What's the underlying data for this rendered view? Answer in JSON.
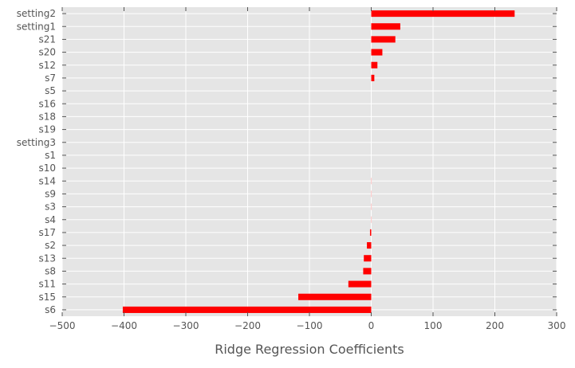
{
  "chart_data": {
    "type": "bar",
    "orientation": "horizontal",
    "title": "",
    "xlabel": "Ridge Regression Coefficients",
    "ylabel": "",
    "xlim": [
      -500,
      300
    ],
    "xticks": [
      -500,
      -400,
      -300,
      -200,
      -100,
      0,
      100,
      200,
      300
    ],
    "xtick_labels": [
      "−500",
      "−400",
      "−300",
      "−200",
      "−100",
      "0",
      "100",
      "200",
      "300"
    ],
    "grid": true,
    "legend": "none",
    "categories": [
      "s6",
      "s15",
      "s11",
      "s8",
      "s13",
      "s2",
      "s17",
      "s4",
      "s3",
      "s9",
      "s14",
      "s10",
      "s1",
      "setting3",
      "s19",
      "s18",
      "s16",
      "s5",
      "s7",
      "s12",
      "s20",
      "s21",
      "setting1",
      "setting2"
    ],
    "values": [
      -402,
      -118,
      -37,
      -13,
      -12,
      -7,
      -2,
      -0.5,
      -0.5,
      -0.5,
      -0.5,
      0,
      0,
      0,
      0,
      0,
      0,
      0,
      5,
      10,
      18,
      39,
      47,
      232
    ],
    "colors": {
      "bar": "#ff0000",
      "bar_tiny": "#ffc8c8",
      "background": "#e5e5e5",
      "grid": "#ffffff",
      "text": "#555555",
      "tick": "#555555"
    }
  }
}
